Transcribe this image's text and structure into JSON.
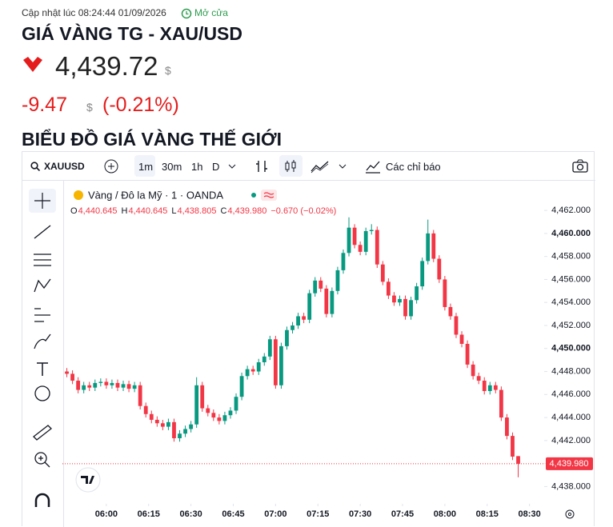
{
  "header": {
    "updated": "Cập nhật lúc 08:24:44 01/09/2026",
    "status": "Mở cửa",
    "title": "GIÁ VÀNG TG - XAU/USD"
  },
  "quote": {
    "price": "4,439.72",
    "currency": "$",
    "change": "-9.47",
    "change_currency": "$",
    "change_pct": "(-0.21%)"
  },
  "section_title": "BIỂU ĐỒ GIÁ VÀNG THẾ GIỚI",
  "toolbar": {
    "symbol": "XAUUSD",
    "intervals": [
      "1m",
      "30m",
      "1h",
      "D"
    ],
    "indicators": "Các chỉ báo"
  },
  "chart_data": {
    "type": "candlestick",
    "legend_title": "Vàng / Đô la Mỹ · 1 · OANDA",
    "ohlc_legend": [
      {
        "key": "O",
        "value": "4,440.645"
      },
      {
        "key": "H",
        "value": "4,440.645"
      },
      {
        "key": "L",
        "value": "4,438.805"
      },
      {
        "key": "C",
        "value": "4,439.980"
      }
    ],
    "legend_change": "−0.670 (−0.02%)",
    "last_label": "4,439.980",
    "up_color": "#089981",
    "down_color": "#f23645",
    "open": [
      4448.0,
      4447.8,
      4447.2,
      4446.4,
      4446.8,
      4446.6,
      4447.0,
      4447.1,
      4446.8,
      4447.0,
      4446.6,
      4446.9,
      4446.5,
      4446.8,
      4445.0,
      4444.3,
      4443.8,
      4443.5,
      4443.2,
      4443.6,
      4442.2,
      4442.6,
      4443.0,
      4443.4,
      4446.8,
      4444.8,
      4444.4,
      4444.0,
      4443.7,
      4444.2,
      4444.6,
      4445.8,
      4447.6,
      4448.2,
      4448.0,
      4448.8,
      4449.3,
      4450.8,
      4446.8,
      4450.2,
      4451.6,
      4452.0,
      4452.8,
      4452.5,
      4454.8,
      4455.9,
      4455.2,
      4453.0,
      4455.0,
      4456.8,
      4458.3,
      4460.5,
      4459.0,
      4458.4,
      4460.2,
      4460.3,
      4457.3,
      4455.8,
      4454.6,
      4454.0,
      4454.3,
      4452.8,
      4454.2,
      4455.4,
      4457.6,
      4460.0,
      4457.8,
      4456.0,
      4453.6,
      4452.8,
      4451.2,
      4450.4,
      4448.6,
      4447.6,
      4447.2,
      4446.3,
      4446.8,
      4446.4,
      4444.0,
      4442.4,
      4440.645
    ],
    "high": [
      4448.3,
      4448.1,
      4447.5,
      4447.1,
      4447.1,
      4447.3,
      4447.4,
      4447.4,
      4447.3,
      4447.3,
      4447.2,
      4447.2,
      4447.1,
      4447.1,
      4445.3,
      4444.6,
      4444.1,
      4443.8,
      4443.9,
      4443.9,
      4442.9,
      4443.3,
      4443.7,
      4447.5,
      4447.1,
      4445.1,
      4444.7,
      4444.3,
      4444.5,
      4444.9,
      4446.1,
      4447.9,
      4448.5,
      4448.5,
      4449.1,
      4449.6,
      4451.1,
      4451.1,
      4450.5,
      4451.9,
      4452.3,
      4453.1,
      4453.1,
      4455.1,
      4456.2,
      4456.2,
      4455.5,
      4455.3,
      4457.1,
      4458.6,
      4461.4,
      4460.8,
      4459.3,
      4460.5,
      4460.8,
      4460.6,
      4457.6,
      4456.1,
      4454.9,
      4454.6,
      4454.6,
      4454.5,
      4455.7,
      4457.9,
      4461.2,
      4460.3,
      4458.1,
      4456.3,
      4453.9,
      4453.1,
      4451.5,
      4450.7,
      4448.9,
      4447.9,
      4447.5,
      4447.1,
      4447.1,
      4446.7,
      4444.3,
      4442.7,
      4440.645
    ],
    "low": [
      4447.5,
      4446.9,
      4446.1,
      4446.1,
      4446.3,
      4446.3,
      4446.7,
      4446.5,
      4446.5,
      4446.3,
      4446.3,
      4446.2,
      4446.2,
      4444.7,
      4444.0,
      4443.5,
      4443.2,
      4442.9,
      4442.9,
      4441.9,
      4441.9,
      4442.3,
      4442.7,
      4443.1,
      4444.5,
      4444.1,
      4443.7,
      4443.4,
      4443.4,
      4443.9,
      4444.3,
      4445.5,
      4447.3,
      4447.7,
      4447.7,
      4448.5,
      4449.0,
      4446.5,
      4446.5,
      4449.9,
      4451.3,
      4451.7,
      4452.2,
      4452.2,
      4454.5,
      4454.9,
      4452.7,
      4452.7,
      4454.7,
      4456.5,
      4458.0,
      4458.7,
      4458.1,
      4458.1,
      4459.9,
      4457.0,
      4455.5,
      4454.3,
      4453.7,
      4453.7,
      4452.5,
      4452.5,
      4453.9,
      4455.1,
      4457.3,
      4457.5,
      4455.7,
      4453.3,
      4452.5,
      4450.9,
      4450.1,
      4448.3,
      4447.3,
      4446.9,
      4446.0,
      4446.0,
      4446.1,
      4443.7,
      4442.1,
      4440.3,
      4438.805
    ],
    "close": [
      4447.8,
      4447.2,
      4446.4,
      4446.8,
      4446.6,
      4447.0,
      4447.1,
      4446.8,
      4447.0,
      4446.6,
      4446.9,
      4446.5,
      4446.8,
      4445.0,
      4444.3,
      4443.8,
      4443.5,
      4443.2,
      4443.6,
      4442.2,
      4442.6,
      4443.0,
      4443.4,
      4446.8,
      4444.8,
      4444.4,
      4444.0,
      4443.7,
      4444.2,
      4444.6,
      4445.8,
      4447.6,
      4448.2,
      4448.0,
      4448.8,
      4449.3,
      4450.8,
      4446.8,
      4450.2,
      4451.6,
      4452.0,
      4452.8,
      4452.5,
      4454.8,
      4455.9,
      4455.2,
      4453.0,
      4455.0,
      4456.8,
      4458.3,
      4460.5,
      4459.0,
      4458.4,
      4460.2,
      4460.3,
      4457.3,
      4455.8,
      4454.6,
      4454.0,
      4454.3,
      4452.8,
      4454.2,
      4455.4,
      4457.6,
      4460.0,
      4457.8,
      4456.0,
      4453.6,
      4452.8,
      4451.2,
      4450.4,
      4448.6,
      4447.6,
      4447.2,
      4446.3,
      4446.8,
      4446.4,
      4444.0,
      4442.4,
      4440.6,
      4439.98
    ],
    "ylim": [
      4436.5,
      4464.3
    ],
    "yticks": [
      {
        "value": 4438,
        "label": "4,438.000"
      },
      {
        "value": 4440,
        "label": "4,440.000"
      },
      {
        "value": 4442,
        "label": "4,442.000"
      },
      {
        "value": 4444,
        "label": "4,444.000"
      },
      {
        "value": 4446,
        "label": "4,446.000"
      },
      {
        "value": 4448,
        "label": "4,448.000"
      },
      {
        "value": 4450,
        "label": "4,450.000"
      },
      {
        "value": 4452,
        "label": "4,452.000"
      },
      {
        "value": 4454,
        "label": "4,454.000"
      },
      {
        "value": 4456,
        "label": "4,456.000"
      },
      {
        "value": 4458,
        "label": "4,458.000"
      },
      {
        "value": 4460,
        "label": "4,460.000"
      },
      {
        "value": 4462,
        "label": "4,462.000"
      }
    ],
    "xticks": [
      {
        "value": 7.5,
        "label": "06:00"
      },
      {
        "value": 15,
        "label": "06:15"
      },
      {
        "value": 22.5,
        "label": "06:30"
      },
      {
        "value": 30,
        "label": "06:45"
      },
      {
        "value": 37.5,
        "label": "07:00"
      },
      {
        "value": 45,
        "label": "07:15"
      },
      {
        "value": 52.5,
        "label": "07:30"
      },
      {
        "value": 60,
        "label": "07:45"
      },
      {
        "value": 67.5,
        "label": "08:00"
      },
      {
        "value": 75,
        "label": "08:15"
      },
      {
        "value": 82.5,
        "label": "08:30"
      }
    ]
  }
}
